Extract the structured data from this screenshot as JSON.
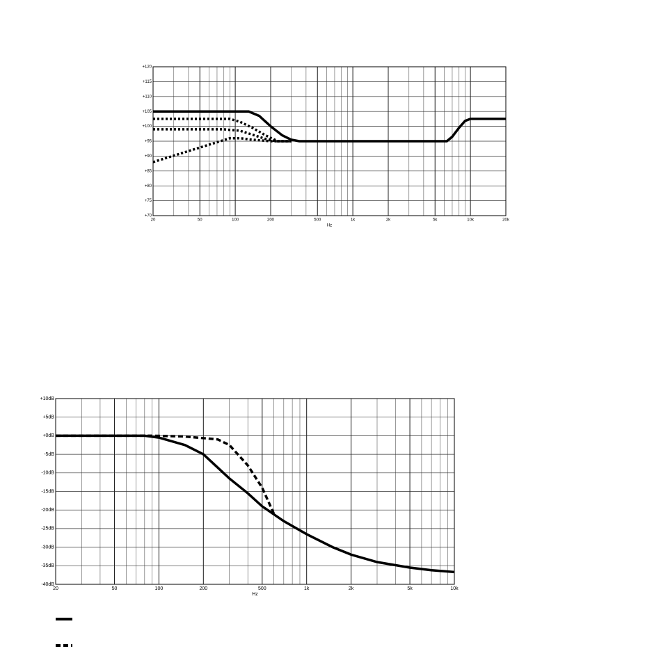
{
  "chart_data": [
    {
      "type": "line",
      "xscale": "log",
      "x_label": "Hz",
      "grid": true,
      "xlim": [
        20,
        20000
      ],
      "ylim": [
        70,
        120
      ],
      "xticks": [
        20,
        50,
        100,
        200,
        500,
        {
          "value": 1000,
          "label": "1k"
        },
        {
          "value": 2000,
          "label": "2k"
        },
        {
          "value": 5000,
          "label": "5k"
        },
        {
          "value": 10000,
          "label": "10k"
        },
        {
          "value": 20000,
          "label": "20k"
        }
      ],
      "yticks": [
        {
          "value": 70,
          "label": "+70"
        },
        {
          "value": 75,
          "label": "+75"
        },
        {
          "value": 80,
          "label": "+80"
        },
        {
          "value": 85,
          "label": "+85"
        },
        {
          "value": 90,
          "label": "+90"
        },
        {
          "value": 95,
          "label": "+95"
        },
        {
          "value": 100,
          "label": "+100"
        },
        {
          "value": 105,
          "label": "+105"
        },
        {
          "value": 110,
          "label": "+110"
        },
        {
          "value": 115,
          "label": "+115"
        },
        {
          "value": 120,
          "label": "+120"
        }
      ],
      "series": [
        {
          "color": "#000000",
          "style": "solid",
          "x": [
            20,
            100,
            130,
            160,
            200,
            250,
            300,
            350,
            1000,
            5000,
            6300,
            7000,
            8000,
            9000,
            10000,
            20000
          ],
          "values": [
            105,
            105,
            105,
            103.5,
            100,
            97,
            95.5,
            95,
            95,
            95,
            95,
            96.5,
            99.5,
            101.8,
            102.5,
            102.5
          ]
        },
        {
          "color": "#000000",
          "style": "dotted",
          "x": [
            20,
            90,
            110,
            140,
            180,
            230,
            300
          ],
          "values": [
            102.5,
            102.5,
            101.5,
            99.5,
            97,
            95,
            95
          ]
        },
        {
          "color": "#000000",
          "style": "dotted",
          "x": [
            20,
            80,
            110,
            140,
            180,
            220,
            300
          ],
          "values": [
            99,
            99,
            98.5,
            97.2,
            95.8,
            95,
            95
          ]
        },
        {
          "color": "#000000",
          "style": "dotted",
          "x": [
            20,
            90,
            110,
            140,
            200,
            300
          ],
          "values": [
            88,
            96,
            96,
            95.5,
            95,
            95
          ]
        }
      ]
    },
    {
      "type": "line",
      "xscale": "log",
      "x_label": "Hz",
      "grid": true,
      "legend": "bottom-left",
      "xlim": [
        20,
        10000
      ],
      "ylim": [
        -40,
        10
      ],
      "xticks": [
        20,
        50,
        100,
        200,
        500,
        {
          "value": 1000,
          "label": "1k"
        },
        {
          "value": 2000,
          "label": "2k"
        },
        {
          "value": 5000,
          "label": "5k"
        },
        {
          "value": 10000,
          "label": "10k"
        }
      ],
      "yticks": [
        {
          "value": -40,
          "label": "-40dB"
        },
        {
          "value": -35,
          "label": "-35dB"
        },
        {
          "value": -30,
          "label": "-30dB"
        },
        {
          "value": -25,
          "label": "-25dB"
        },
        {
          "value": -20,
          "label": "-20dB"
        },
        {
          "value": -15,
          "label": "-15dB"
        },
        {
          "value": -10,
          "label": "-10dB"
        },
        {
          "value": -5,
          "label": "-5dB"
        },
        {
          "value": 0,
          "label": "+0dB"
        },
        {
          "value": 5,
          "label": "+5dB"
        },
        {
          "value": 10,
          "label": "+10dB"
        }
      ],
      "series": [
        {
          "color": "#000000",
          "style": "solid",
          "x": [
            20,
            50,
            80,
            100,
            150,
            200,
            300,
            400,
            500,
            700,
            1000,
            1500,
            2000,
            3000,
            5000,
            7000,
            10000
          ],
          "values": [
            0,
            0,
            0,
            -0.5,
            -2.5,
            -5,
            -11.5,
            -15.5,
            -19,
            -23,
            -26.5,
            -30,
            -32,
            -34,
            -35.5,
            -36.2,
            -36.7
          ]
        },
        {
          "color": "#000000",
          "style": "dashed",
          "x": [
            20,
            90,
            150,
            250,
            300,
            400,
            500,
            600
          ],
          "values": [
            0,
            0,
            -0.2,
            -1,
            -2.5,
            -8,
            -14,
            -21
          ]
        }
      ]
    }
  ]
}
